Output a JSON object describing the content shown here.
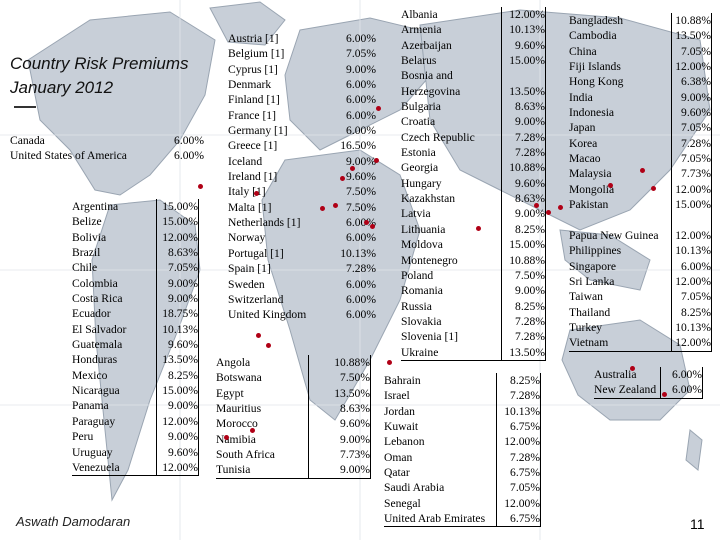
{
  "title": "Country Risk Premiums January 2012",
  "author": "Aswath Damodaran",
  "page_number": "11",
  "colors": {
    "marker": "#b00016",
    "land": "#c8cfd8",
    "land_edge": "#9aa5b2"
  },
  "north_america": [
    {
      "country": "Canada",
      "premium": "6.00%"
    },
    {
      "country": "United States of America",
      "premium": "6.00%"
    }
  ],
  "latin_america": [
    {
      "country": "Argentina",
      "premium": "15.00%"
    },
    {
      "country": "Belize",
      "premium": "15.00%"
    },
    {
      "country": "Bolivia",
      "premium": "12.00%"
    },
    {
      "country": "Brazil",
      "premium": "8.63%"
    },
    {
      "country": "Chile",
      "premium": "7.05%"
    },
    {
      "country": "Colombia",
      "premium": "9.00%"
    },
    {
      "country": "Costa Rica",
      "premium": "9.00%"
    },
    {
      "country": "Ecuador",
      "premium": "18.75%"
    },
    {
      "country": "El Salvador",
      "premium": "10.13%"
    },
    {
      "country": "Guatemala",
      "premium": "9.60%"
    },
    {
      "country": "Honduras",
      "premium": "13.50%"
    },
    {
      "country": "Mexico",
      "premium": "8.25%"
    },
    {
      "country": "Nicaragua",
      "premium": "15.00%"
    },
    {
      "country": "Panama",
      "premium": "9.00%"
    },
    {
      "country": "Paraguay",
      "premium": "12.00%"
    },
    {
      "country": "Peru",
      "premium": "9.00%"
    },
    {
      "country": "Uruguay",
      "premium": "9.60%"
    },
    {
      "country": "Venezuela",
      "premium": "12.00%"
    }
  ],
  "western_europe": [
    {
      "country": "Austria [1]",
      "premium": "6.00%"
    },
    {
      "country": "Belgium [1]",
      "premium": "7.05%"
    },
    {
      "country": "Cyprus [1]",
      "premium": "9.00%"
    },
    {
      "country": "Denmark",
      "premium": "6.00%"
    },
    {
      "country": "Finland [1]",
      "premium": "6.00%"
    },
    {
      "country": "France [1]",
      "premium": "6.00%"
    },
    {
      "country": "Germany [1]",
      "premium": "6.00%"
    },
    {
      "country": "Greece [1]",
      "premium": "16.50%"
    },
    {
      "country": "Iceland",
      "premium": "9.00%"
    },
    {
      "country": "Ireland [1]",
      "premium": "9.60%"
    },
    {
      "country": "Italy [1]",
      "premium": "7.50%"
    },
    {
      "country": "Malta [1]",
      "premium": "7.50%"
    },
    {
      "country": "Netherlands [1]",
      "premium": "6.00%"
    },
    {
      "country": "Norway",
      "premium": "6.00%"
    },
    {
      "country": "Portugal [1]",
      "premium": "10.13%"
    },
    {
      "country": "Spain [1]",
      "premium": "7.28%"
    },
    {
      "country": "Sweden",
      "premium": "6.00%"
    },
    {
      "country": "Switzerland",
      "premium": "6.00%"
    },
    {
      "country": "United Kingdom",
      "premium": "6.00%"
    }
  ],
  "africa": [
    {
      "country": "Angola",
      "premium": "10.88%"
    },
    {
      "country": "Botswana",
      "premium": "7.50%"
    },
    {
      "country": "Egypt",
      "premium": "13.50%"
    },
    {
      "country": "Mauritius",
      "premium": "8.63%"
    },
    {
      "country": "Morocco",
      "premium": "9.60%"
    },
    {
      "country": "Namibia",
      "premium": "9.00%"
    },
    {
      "country": "South Africa",
      "premium": "7.73%"
    },
    {
      "country": "Tunisia",
      "premium": "9.00%"
    }
  ],
  "eastern_europe": [
    {
      "country": "Albania",
      "premium": "12.00%"
    },
    {
      "country": "Armenia",
      "premium": "10.13%"
    },
    {
      "country": "Azerbaijan",
      "premium": "9.60%"
    },
    {
      "country": "Belarus",
      "premium": "15.00%"
    },
    {
      "country": "Bosnia and Herzegovina",
      "premium": "13.50%"
    },
    {
      "country": "Bulgaria",
      "premium": "8.63%"
    },
    {
      "country": "Croatia",
      "premium": "9.00%"
    },
    {
      "country": "Czech Republic",
      "premium": "7.28%"
    },
    {
      "country": "Estonia",
      "premium": "7.28%"
    },
    {
      "country": "Georgia",
      "premium": "10.88%"
    },
    {
      "country": "Hungary",
      "premium": "9.60%"
    },
    {
      "country": "Kazakhstan",
      "premium": "8.63%"
    },
    {
      "country": "Latvia",
      "premium": "9.00%"
    },
    {
      "country": "Lithuania",
      "premium": "8.25%"
    },
    {
      "country": "Moldova",
      "premium": "15.00%"
    },
    {
      "country": "Montenegro",
      "premium": "10.88%"
    },
    {
      "country": "Poland",
      "premium": "7.50%"
    },
    {
      "country": "Romania",
      "premium": "9.00%"
    },
    {
      "country": "Russia",
      "premium": "8.25%"
    },
    {
      "country": "Slovakia",
      "premium": "7.28%"
    },
    {
      "country": "Slovenia [1]",
      "premium": "7.28%"
    },
    {
      "country": "Ukraine",
      "premium": "13.50%"
    }
  ],
  "middle_east": [
    {
      "country": "Bahrain",
      "premium": "8.25%"
    },
    {
      "country": "Israel",
      "premium": "7.28%"
    },
    {
      "country": "Jordan",
      "premium": "10.13%"
    },
    {
      "country": "Kuwait",
      "premium": "6.75%"
    },
    {
      "country": "Lebanon",
      "premium": "12.00%"
    },
    {
      "country": "Oman",
      "premium": "7.28%"
    },
    {
      "country": "Qatar",
      "premium": "6.75%"
    },
    {
      "country": "Saudi Arabia",
      "premium": "7.05%"
    },
    {
      "country": "Senegal",
      "premium": "12.00%"
    },
    {
      "country": "United Arab Emirates",
      "premium": "6.75%"
    }
  ],
  "asia": [
    {
      "country": "Bangladesh",
      "premium": "10.88%"
    },
    {
      "country": "Cambodia",
      "premium": "13.50%"
    },
    {
      "country": "China",
      "premium": "7.05%"
    },
    {
      "country": "Fiji Islands",
      "premium": "12.00%"
    },
    {
      "country": "Hong Kong",
      "premium": "6.38%"
    },
    {
      "country": "India",
      "premium": "9.00%"
    },
    {
      "country": "Indonesia",
      "premium": "9.60%"
    },
    {
      "country": "Japan",
      "premium": "7.05%"
    },
    {
      "country": "Korea",
      "premium": "7.28%"
    },
    {
      "country": "Macao",
      "premium": "7.05%"
    },
    {
      "country": "Malaysia",
      "premium": "7.73%"
    },
    {
      "country": "Mongolia",
      "premium": "12.00%"
    },
    {
      "country": "Pakistan",
      "premium": "15.00%"
    },
    {
      "country": "Papua New Guinea",
      "premium": "12.00%"
    },
    {
      "country": "Philippines",
      "premium": "10.13%"
    },
    {
      "country": "Singapore",
      "premium": "6.00%"
    },
    {
      "country": "Sri Lanka",
      "premium": "12.00%"
    },
    {
      "country": "Taiwan",
      "premium": "7.05%"
    },
    {
      "country": "Thailand",
      "premium": "8.25%"
    },
    {
      "country": "Turkey",
      "premium": "10.13%"
    },
    {
      "country": "Vietnam",
      "premium": "12.00%"
    }
  ],
  "oceania": [
    {
      "country": "Australia",
      "premium": "6.00%"
    },
    {
      "country": "New Zealand",
      "premium": "6.00%"
    }
  ]
}
